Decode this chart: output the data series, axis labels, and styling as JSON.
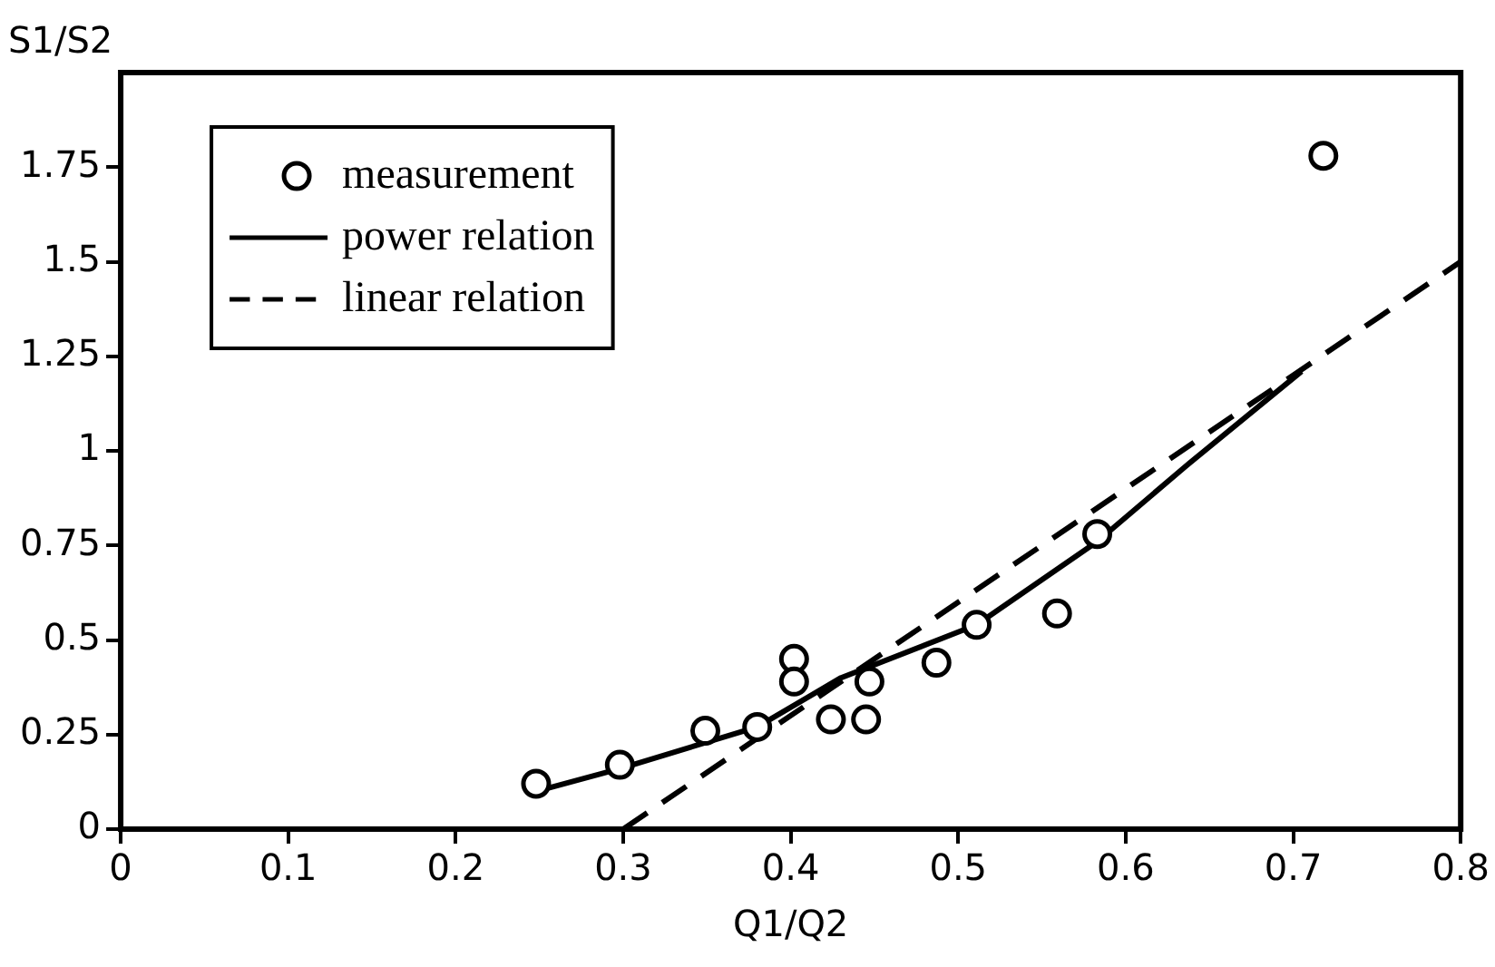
{
  "chart_data": {
    "type": "scatter",
    "xlabel": "Q1/Q2",
    "ylabel": "S1/S2",
    "xlim": [
      0,
      0.8
    ],
    "ylim": [
      0,
      2
    ],
    "xticks": [
      0,
      0.1,
      0.2,
      0.3,
      0.4,
      0.5,
      0.6,
      0.7,
      0.8
    ],
    "yticks": [
      0,
      0.25,
      0.5,
      0.75,
      1,
      1.25,
      1.5,
      1.75
    ],
    "grid": false,
    "legend": "top left",
    "series": [
      {
        "name": "measurement",
        "marker": "circle",
        "color": "#000000",
        "x": [
          0.248,
          0.298,
          0.349,
          0.38,
          0.402,
          0.402,
          0.424,
          0.445,
          0.447,
          0.487,
          0.511,
          0.559,
          0.583,
          0.718
        ],
        "values": [
          0.12,
          0.17,
          0.26,
          0.27,
          0.45,
          0.39,
          0.29,
          0.29,
          0.39,
          0.44,
          0.54,
          0.57,
          0.78,
          1.78
        ]
      },
      {
        "name": "power relation",
        "type": "line",
        "marker": "none",
        "line_style": "solid",
        "color": "#000000",
        "x": [
          0.248,
          0.298,
          0.38,
          0.43,
          0.511,
          0.583,
          0.636,
          0.705
        ],
        "values": [
          0.1,
          0.16,
          0.27,
          0.4,
          0.54,
          0.76,
          0.96,
          1.21
        ]
      },
      {
        "name": "linear relation",
        "type": "line",
        "marker": "none",
        "line_style": "dashed",
        "color": "#000000",
        "x": [
          0.3,
          0.8
        ],
        "values": [
          0,
          1.5
        ]
      }
    ]
  }
}
